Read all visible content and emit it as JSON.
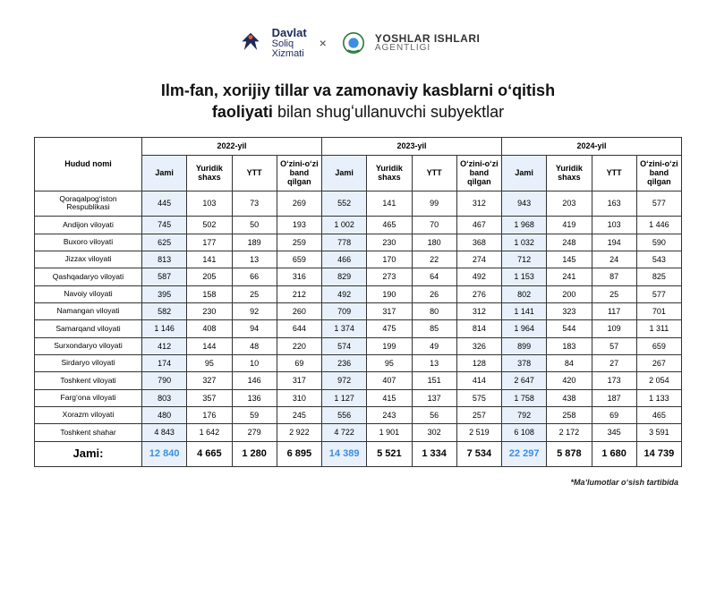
{
  "logos": {
    "left": {
      "line1": "Davlat",
      "line2": "Soliq",
      "line3": "Xizmati",
      "color": "#1d2a5c"
    },
    "separator": "×",
    "right": {
      "line1": "YOSHLAR ISHLARI",
      "line2": "AGENTLIGI",
      "color": "#333333"
    }
  },
  "title": {
    "bold1": "Ilm-fan, xorijiy tillar va zamonaviy kasblarni oʻqitish",
    "bold2": "faoliyati",
    "light": " bilan shugʻullanuvchi subyektlar"
  },
  "table": {
    "hudud_header": "Hudud nomi",
    "year_headers": [
      "2022-yil",
      "2023-yil",
      "2024-yil"
    ],
    "sub_headers": [
      "Jami",
      "Yuridik shaxs",
      "YTT",
      "Oʻzini-oʻzi band qilgan"
    ],
    "highlight_color": "#e8f1fb",
    "border_color": "#333333",
    "header_fontsize": 9,
    "cell_fontsize": 9,
    "rows": [
      {
        "name": "Qoraqalpogʻiston Respublikasi",
        "y2022": [
          "445",
          "103",
          "73",
          "269"
        ],
        "y2023": [
          "552",
          "141",
          "99",
          "312"
        ],
        "y2024": [
          "943",
          "203",
          "163",
          "577"
        ]
      },
      {
        "name": "Andijon viloyati",
        "y2022": [
          "745",
          "502",
          "50",
          "193"
        ],
        "y2023": [
          "1 002",
          "465",
          "70",
          "467"
        ],
        "y2024": [
          "1 968",
          "419",
          "103",
          "1 446"
        ]
      },
      {
        "name": "Buxoro viloyati",
        "y2022": [
          "625",
          "177",
          "189",
          "259"
        ],
        "y2023": [
          "778",
          "230",
          "180",
          "368"
        ],
        "y2024": [
          "1 032",
          "248",
          "194",
          "590"
        ]
      },
      {
        "name": "Jizzax viloyati",
        "y2022": [
          "813",
          "141",
          "13",
          "659"
        ],
        "y2023": [
          "466",
          "170",
          "22",
          "274"
        ],
        "y2024": [
          "712",
          "145",
          "24",
          "543"
        ]
      },
      {
        "name": "Qashqadaryo viloyati",
        "y2022": [
          "587",
          "205",
          "66",
          "316"
        ],
        "y2023": [
          "829",
          "273",
          "64",
          "492"
        ],
        "y2024": [
          "1 153",
          "241",
          "87",
          "825"
        ]
      },
      {
        "name": "Navoiy viloyati",
        "y2022": [
          "395",
          "158",
          "25",
          "212"
        ],
        "y2023": [
          "492",
          "190",
          "26",
          "276"
        ],
        "y2024": [
          "802",
          "200",
          "25",
          "577"
        ]
      },
      {
        "name": "Namangan viloyati",
        "y2022": [
          "582",
          "230",
          "92",
          "260"
        ],
        "y2023": [
          "709",
          "317",
          "80",
          "312"
        ],
        "y2024": [
          "1 141",
          "323",
          "117",
          "701"
        ]
      },
      {
        "name": "Samarqand viloyati",
        "y2022": [
          "1 146",
          "408",
          "94",
          "644"
        ],
        "y2023": [
          "1 374",
          "475",
          "85",
          "814"
        ],
        "y2024": [
          "1 964",
          "544",
          "109",
          "1 311"
        ]
      },
      {
        "name": "Surxondaryo viloyati",
        "y2022": [
          "412",
          "144",
          "48",
          "220"
        ],
        "y2023": [
          "574",
          "199",
          "49",
          "326"
        ],
        "y2024": [
          "899",
          "183",
          "57",
          "659"
        ]
      },
      {
        "name": "Sirdaryo viloyati",
        "y2022": [
          "174",
          "95",
          "10",
          "69"
        ],
        "y2023": [
          "236",
          "95",
          "13",
          "128"
        ],
        "y2024": [
          "378",
          "84",
          "27",
          "267"
        ]
      },
      {
        "name": "Toshkent viloyati",
        "y2022": [
          "790",
          "327",
          "146",
          "317"
        ],
        "y2023": [
          "972",
          "407",
          "151",
          "414"
        ],
        "y2024": [
          "2 647",
          "420",
          "173",
          "2 054"
        ]
      },
      {
        "name": "Fargʻona viloyati",
        "y2022": [
          "803",
          "357",
          "136",
          "310"
        ],
        "y2023": [
          "1 127",
          "415",
          "137",
          "575"
        ],
        "y2024": [
          "1 758",
          "438",
          "187",
          "1 133"
        ]
      },
      {
        "name": "Xorazm viloyati",
        "y2022": [
          "480",
          "176",
          "59",
          "245"
        ],
        "y2023": [
          "556",
          "243",
          "56",
          "257"
        ],
        "y2024": [
          "792",
          "258",
          "69",
          "465"
        ]
      },
      {
        "name": "Toshkent shahar",
        "y2022": [
          "4 843",
          "1 642",
          "279",
          "2 922"
        ],
        "y2023": [
          "4 722",
          "1 901",
          "302",
          "2 519"
        ],
        "y2024": [
          "6 108",
          "2 172",
          "345",
          "3 591"
        ]
      }
    ],
    "total": {
      "label": "Jami:",
      "y2022": [
        "12 840",
        "4 665",
        "1 280",
        "6 895"
      ],
      "y2023": [
        "14 389",
        "5 521",
        "1 334",
        "7 534"
      ],
      "y2024": [
        "22 297",
        "5 878",
        "1 680",
        "14 739"
      ],
      "highlight_text_color": "#3d8de0"
    }
  },
  "footnote": "*Maʼlumotlar oʻsish tartibida"
}
